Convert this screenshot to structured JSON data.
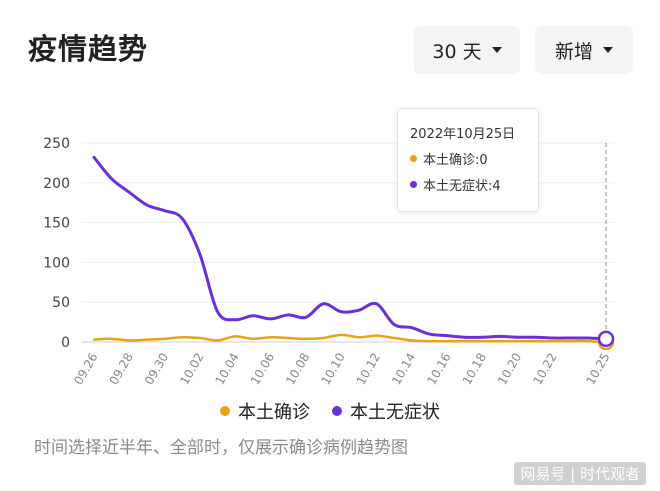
{
  "header": {
    "title": "疫情趋势",
    "range_select": "30 天",
    "mode_select": "新增"
  },
  "tooltip": {
    "date": "2022年10月25日",
    "rows": [
      {
        "label": "本土确诊:0",
        "color": "#E8A21A"
      },
      {
        "label": "本土无症状:4",
        "color": "#6A2FD6"
      }
    ]
  },
  "legend": [
    {
      "label": "本土确诊",
      "color": "#E8A21A"
    },
    {
      "label": "本土无症状",
      "color": "#6A2FD6"
    }
  ],
  "note": "时间选择近半年、全部时，仅展示确诊病例趋势图",
  "watermark": "网易号 | 时代观者",
  "chart_data": {
    "type": "line",
    "x": [
      "09.26",
      "09.27",
      "09.28",
      "09.29",
      "09.30",
      "10.01",
      "10.02",
      "10.03",
      "10.04",
      "10.05",
      "10.06",
      "10.07",
      "10.08",
      "10.09",
      "10.10",
      "10.11",
      "10.12",
      "10.13",
      "10.14",
      "10.15",
      "10.16",
      "10.17",
      "10.18",
      "10.19",
      "10.20",
      "10.21",
      "10.22",
      "10.23",
      "10.24",
      "10.25"
    ],
    "tick_labels": [
      "09.26",
      "09.28",
      "09.30",
      "10.02",
      "10.04",
      "10.06",
      "10.08",
      "10.10",
      "10.12",
      "10.14",
      "10.16",
      "10.18",
      "10.20",
      "10.22",
      "10.25"
    ],
    "ylim": [
      0,
      250
    ],
    "yticks": [
      0,
      50,
      100,
      150,
      200,
      250
    ],
    "grid": true,
    "legend_position": "bottom",
    "series": [
      {
        "name": "本土确诊",
        "color": "#E8A21A",
        "values": [
          3,
          4,
          2,
          3,
          4,
          6,
          5,
          2,
          7,
          4,
          6,
          5,
          4,
          5,
          9,
          6,
          8,
          5,
          2,
          1,
          1,
          1,
          1,
          1,
          1,
          1,
          1,
          1,
          1,
          0
        ]
      },
      {
        "name": "本土无症状",
        "color": "#6A2FD6",
        "values": [
          232,
          205,
          188,
          172,
          165,
          155,
          110,
          38,
          28,
          33,
          29,
          34,
          31,
          48,
          38,
          40,
          48,
          22,
          18,
          10,
          8,
          6,
          6,
          7,
          6,
          6,
          5,
          5,
          5,
          4
        ]
      }
    ]
  }
}
